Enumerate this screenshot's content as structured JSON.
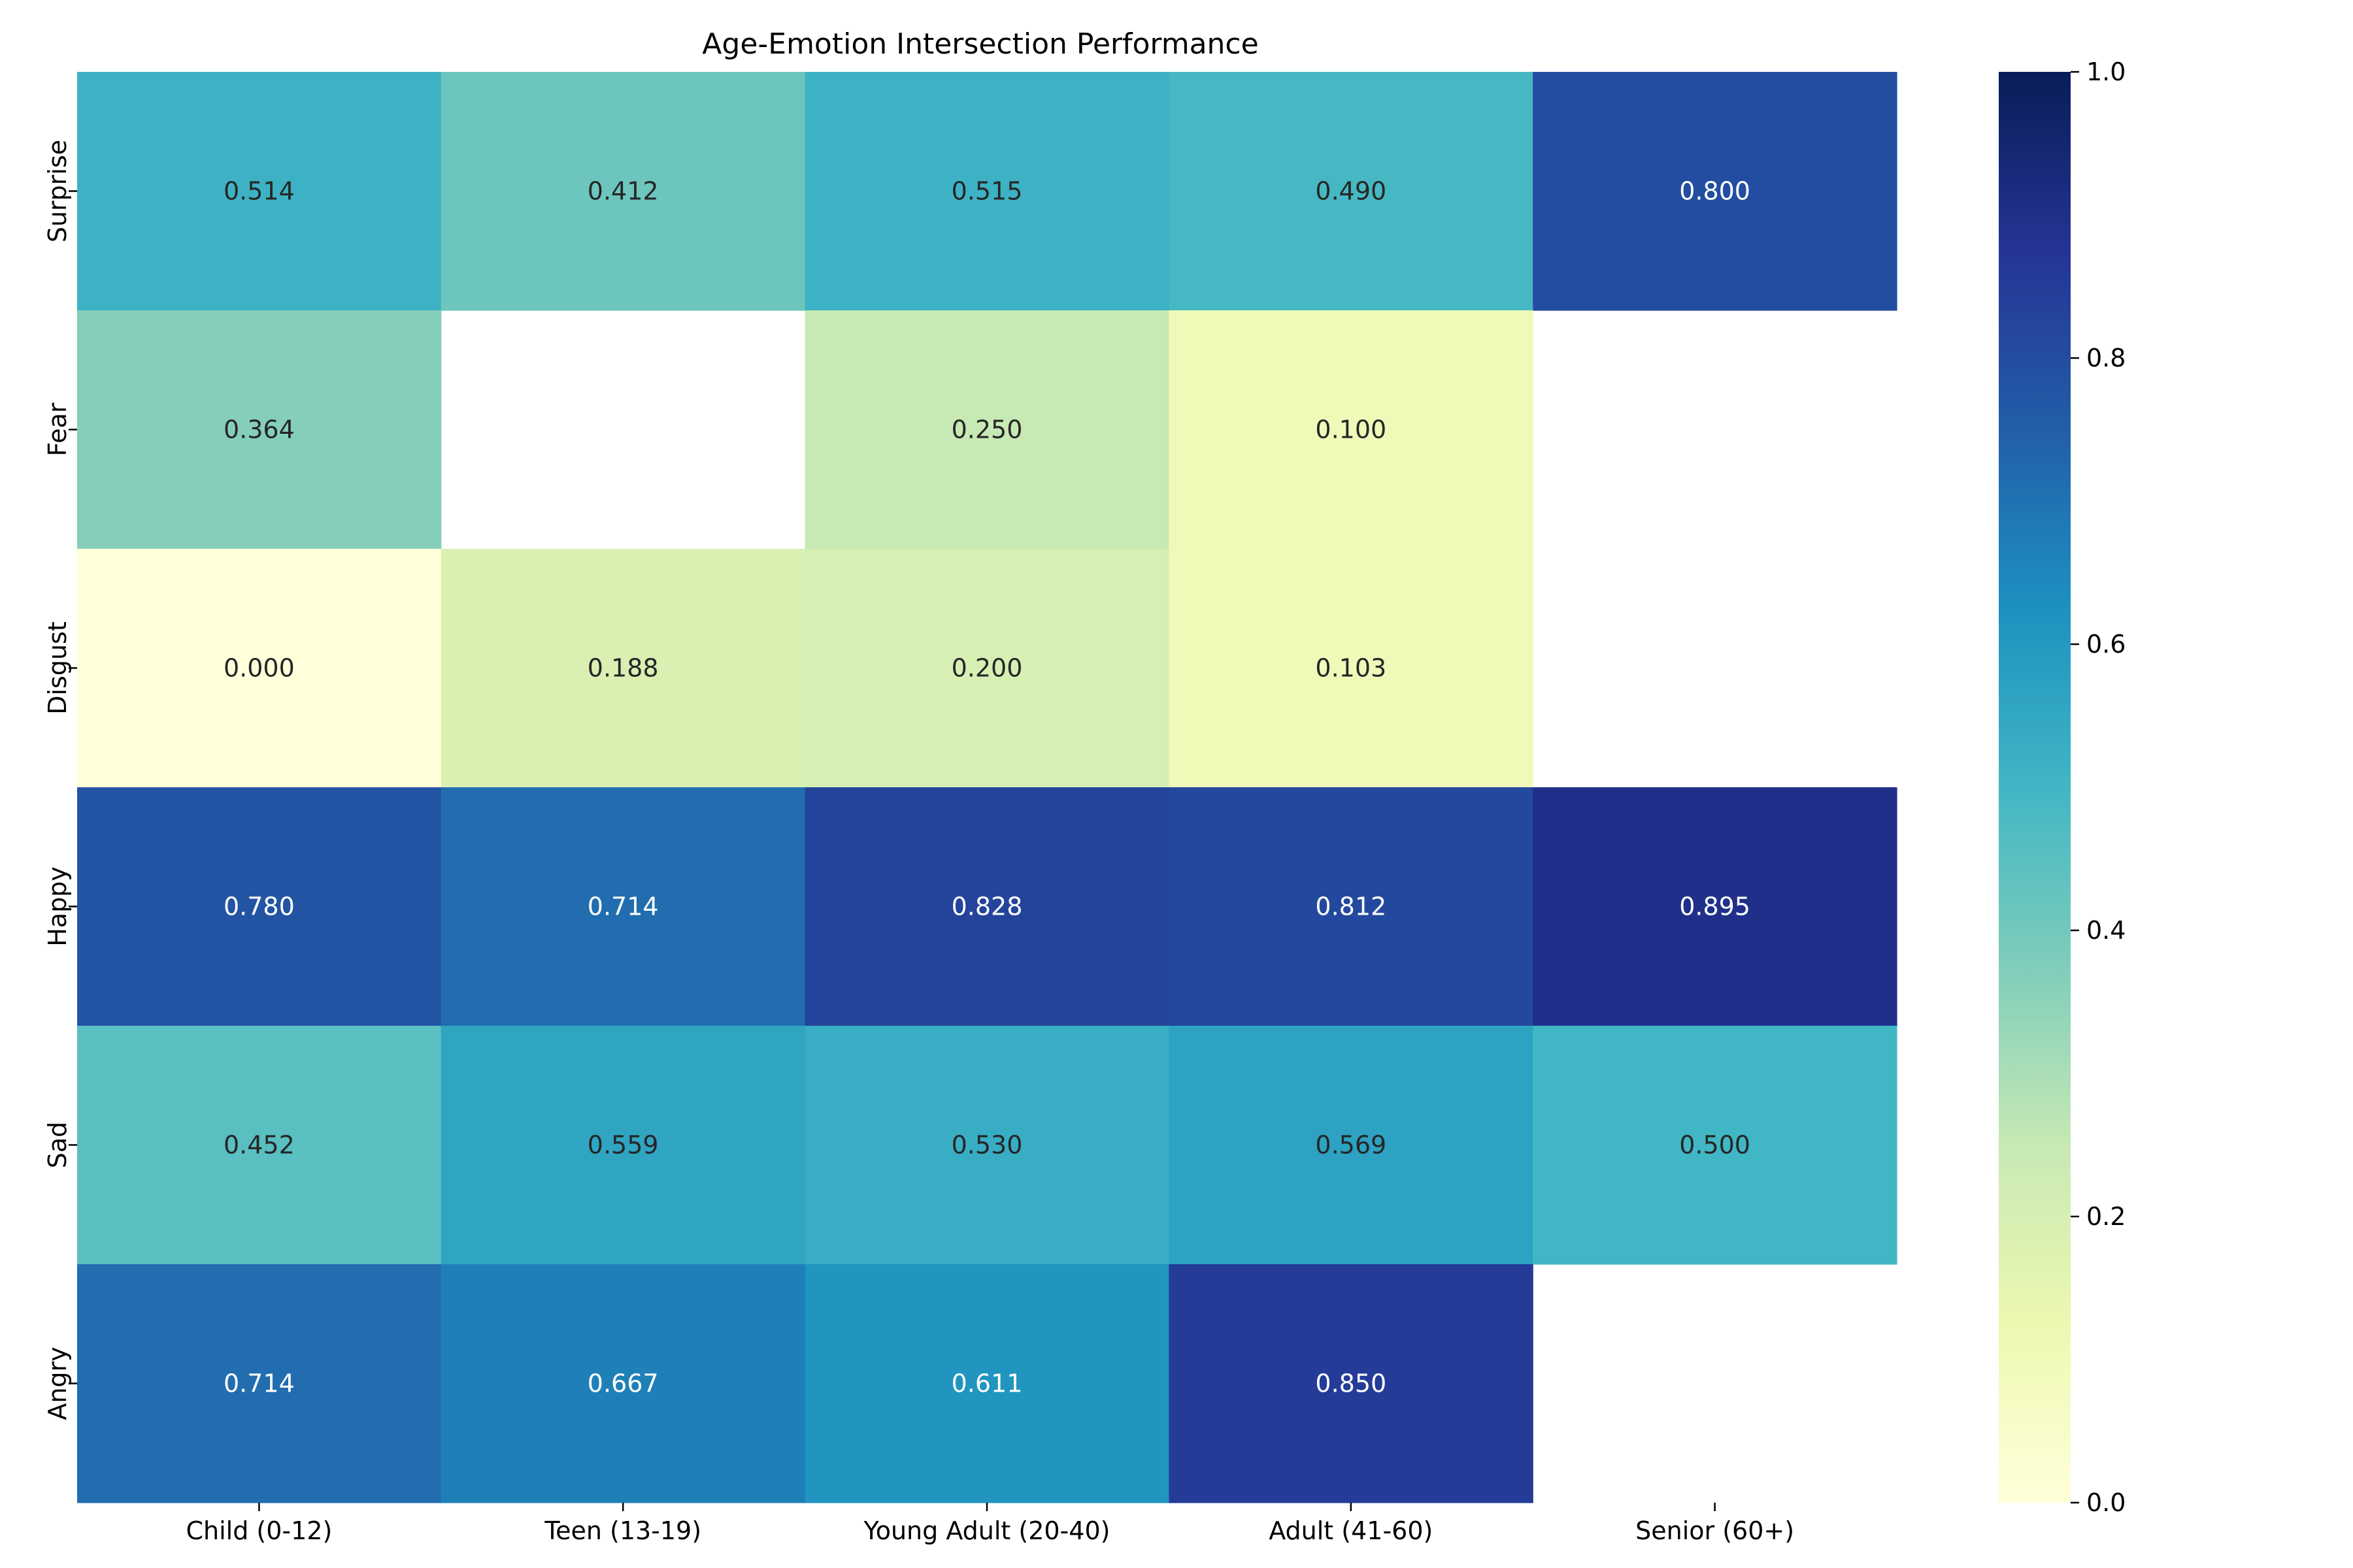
{
  "chart_data": {
    "type": "heatmap",
    "title": "Age-Emotion Intersection Performance",
    "xlabel": "",
    "ylabel": "",
    "columns": [
      "Child (0-12)",
      "Teen (13-19)",
      "Young Adult (20-40)",
      "Adult (41-60)",
      "Senior (60+)"
    ],
    "rows": [
      "Surprise",
      "Fear",
      "Disgust",
      "Happy",
      "Sad",
      "Angry"
    ],
    "values": [
      [
        0.514,
        0.412,
        0.515,
        0.49,
        0.8
      ],
      [
        0.364,
        null,
        0.25,
        0.1,
        null
      ],
      [
        0.0,
        0.188,
        0.2,
        0.103,
        null
      ],
      [
        0.78,
        0.714,
        0.828,
        0.812,
        0.895
      ],
      [
        0.452,
        0.559,
        0.53,
        0.569,
        0.5
      ],
      [
        0.714,
        0.667,
        0.611,
        0.85,
        null
      ]
    ],
    "value_format": "0.000",
    "colormap": "YlGnBu",
    "vmin": 0.0,
    "vmax": 1.0,
    "colorbar_ticks": [
      "0.0",
      "0.2",
      "0.4",
      "0.6",
      "0.8",
      "1.0"
    ],
    "missing_color": "#ffffff"
  }
}
